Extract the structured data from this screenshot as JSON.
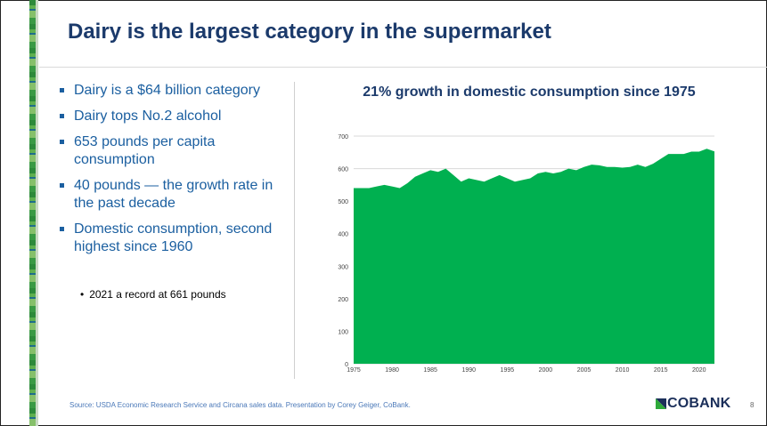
{
  "slide": {
    "title": "Dairy is the largest category in the supermarket",
    "bullets": [
      "Dairy is a $64 billion category",
      "Dairy tops No.2 alcohol",
      "653 pounds per capita consumption",
      "40 pounds — the growth rate in the past decade",
      "Domestic consumption, second highest since 1960"
    ],
    "sub_bullet": "2021 a record at 661 pounds",
    "source": "Source: USDA Economic Research Service and Circana sales data. Presentation by Corey Geiger, CoBank.",
    "logo_text": "COBANK",
    "page_number": "8"
  },
  "colors": {
    "title": "#1b3a6b",
    "bullet": "#1b5fa0",
    "area_fill": "#00b050",
    "stripe": "#2d8a3a"
  },
  "chart_data": {
    "type": "area",
    "title": "21% growth in domestic consumption since 1975",
    "xlabel": "",
    "ylabel": "",
    "x": [
      1975,
      1976,
      1977,
      1978,
      1979,
      1980,
      1981,
      1982,
      1983,
      1984,
      1985,
      1986,
      1987,
      1988,
      1989,
      1990,
      1991,
      1992,
      1993,
      1994,
      1995,
      1996,
      1997,
      1998,
      1999,
      2000,
      2001,
      2002,
      2003,
      2004,
      2005,
      2006,
      2007,
      2008,
      2009,
      2010,
      2011,
      2012,
      2013,
      2014,
      2015,
      2016,
      2017,
      2018,
      2019,
      2020,
      2021,
      2022
    ],
    "series": [
      {
        "values": [
          540,
          540,
          540,
          545,
          550,
          545,
          540,
          555,
          575,
          585,
          595,
          590,
          600,
          580,
          560,
          570,
          565,
          560,
          570,
          580,
          570,
          560,
          565,
          570,
          585,
          590,
          585,
          590,
          600,
          595,
          605,
          612,
          610,
          605,
          605,
          603,
          605,
          612,
          605,
          615,
          630,
          645,
          645,
          645,
          652,
          652,
          661,
          653
        ]
      }
    ],
    "xticks": [
      1975,
      1980,
      1985,
      1990,
      1995,
      2000,
      2005,
      2010,
      2015,
      2020
    ],
    "yticks": [
      0,
      100,
      200,
      300,
      400,
      500,
      600,
      700
    ],
    "xlim": [
      1975,
      2022
    ],
    "ylim": [
      0,
      700
    ],
    "grid": "horizontal",
    "legend": "none"
  }
}
